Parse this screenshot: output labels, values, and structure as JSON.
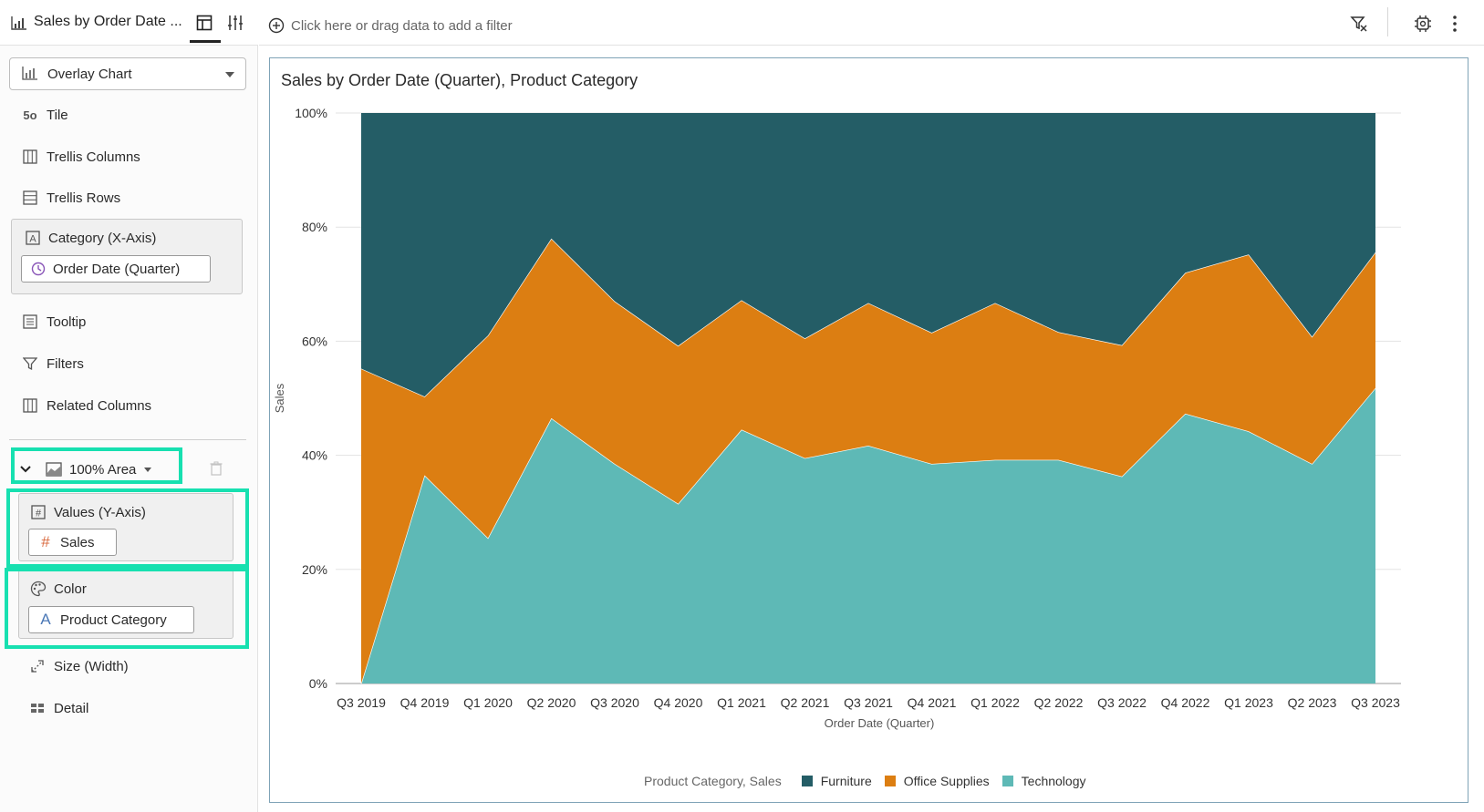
{
  "panel": {
    "title": "Sales by Order Date ...",
    "chart_type": "Overlay Chart",
    "items": {
      "tile": "Tile",
      "trellis_columns": "Trellis Columns",
      "trellis_rows": "Trellis Rows",
      "category_axis": "Category (X-Axis)",
      "category_pill": "Order Date (Quarter)",
      "tooltip": "Tooltip",
      "filters": "Filters",
      "related_columns": "Related Columns",
      "layer_type": "100% Area",
      "values_axis": "Values (Y-Axis)",
      "values_pill": "Sales",
      "color": "Color",
      "color_pill": "Product Category",
      "size": "Size (Width)",
      "detail": "Detail"
    },
    "icons": {
      "tile": "5o",
      "attribute": "A",
      "measure": "#"
    }
  },
  "filter_bar": {
    "placeholder": "Click here or drag data to add a filter"
  },
  "highlight_color": "#17e0b0",
  "chart_data": {
    "type": "area",
    "stacked": "percent",
    "title": "Sales by Order Date (Quarter), Product Category",
    "xlabel": "Order Date (Quarter)",
    "ylabel": "Sales",
    "ylim": [
      0,
      100
    ],
    "yticks": [
      "0%",
      "20%",
      "40%",
      "60%",
      "80%",
      "100%"
    ],
    "grid": true,
    "legend_title": "Product Category, Sales",
    "legend_position": "bottom",
    "categories": [
      "Q3 2019",
      "Q4 2019",
      "Q1 2020",
      "Q2 2020",
      "Q3 2020",
      "Q4 2020",
      "Q1 2021",
      "Q2 2021",
      "Q3 2021",
      "Q4 2021",
      "Q1 2022",
      "Q2 2022",
      "Q3 2022",
      "Q4 2022",
      "Q1 2023",
      "Q2 2023",
      "Q3 2023"
    ],
    "series": [
      {
        "name": "Technology",
        "color": "#5eb9b6",
        "values": [
          0,
          36.5,
          25.5,
          46.5,
          38.5,
          31.5,
          44.5,
          39.5,
          41.7,
          38.5,
          39.2,
          39.2,
          36.3,
          47.3,
          44.2,
          38.5,
          51.8
        ]
      },
      {
        "name": "Office Supplies",
        "color": "#dc7e12",
        "values": [
          55.2,
          13.8,
          35.5,
          31.5,
          28.5,
          27.7,
          22.7,
          21.0,
          25.0,
          23.0,
          27.5,
          22.4,
          23.0,
          24.7,
          31.0,
          22.3,
          23.8
        ]
      },
      {
        "name": "Furniture",
        "color": "#245d66",
        "values": [
          44.8,
          49.7,
          39.0,
          22.0,
          33.0,
          40.8,
          32.8,
          39.5,
          33.3,
          38.5,
          33.3,
          38.4,
          40.7,
          28.0,
          24.8,
          39.2,
          24.4
        ]
      }
    ],
    "legend_order": [
      "Furniture",
      "Office Supplies",
      "Technology"
    ]
  }
}
